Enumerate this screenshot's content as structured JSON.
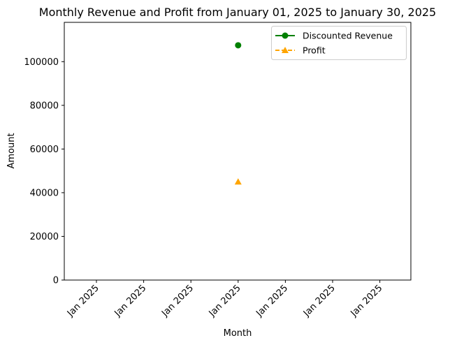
{
  "chart_data": {
    "type": "line",
    "title": "Monthly Revenue and Profit from January 01, 2025 to January 30, 2025",
    "xlabel": "Month",
    "ylabel": "Amount",
    "x_tick_labels": [
      "Jan 2025",
      "Jan 2025",
      "Jan 2025",
      "Jan 2025",
      "Jan 2025",
      "Jan 2025",
      "Jan 2025"
    ],
    "x_points": [
      "Jan 2025"
    ],
    "ylim": [
      0,
      118000
    ],
    "y_ticks": [
      0,
      20000,
      40000,
      60000,
      80000,
      100000
    ],
    "grid": false,
    "legend_position": "top-right",
    "series": [
      {
        "name": "Discounted Revenue",
        "values": [
          107500
        ],
        "color": "#008000",
        "marker": "circle",
        "line_style": "solid"
      },
      {
        "name": "Profit",
        "values": [
          45000
        ],
        "color": "#ffa500",
        "marker": "triangle",
        "line_style": "dashed"
      }
    ]
  }
}
